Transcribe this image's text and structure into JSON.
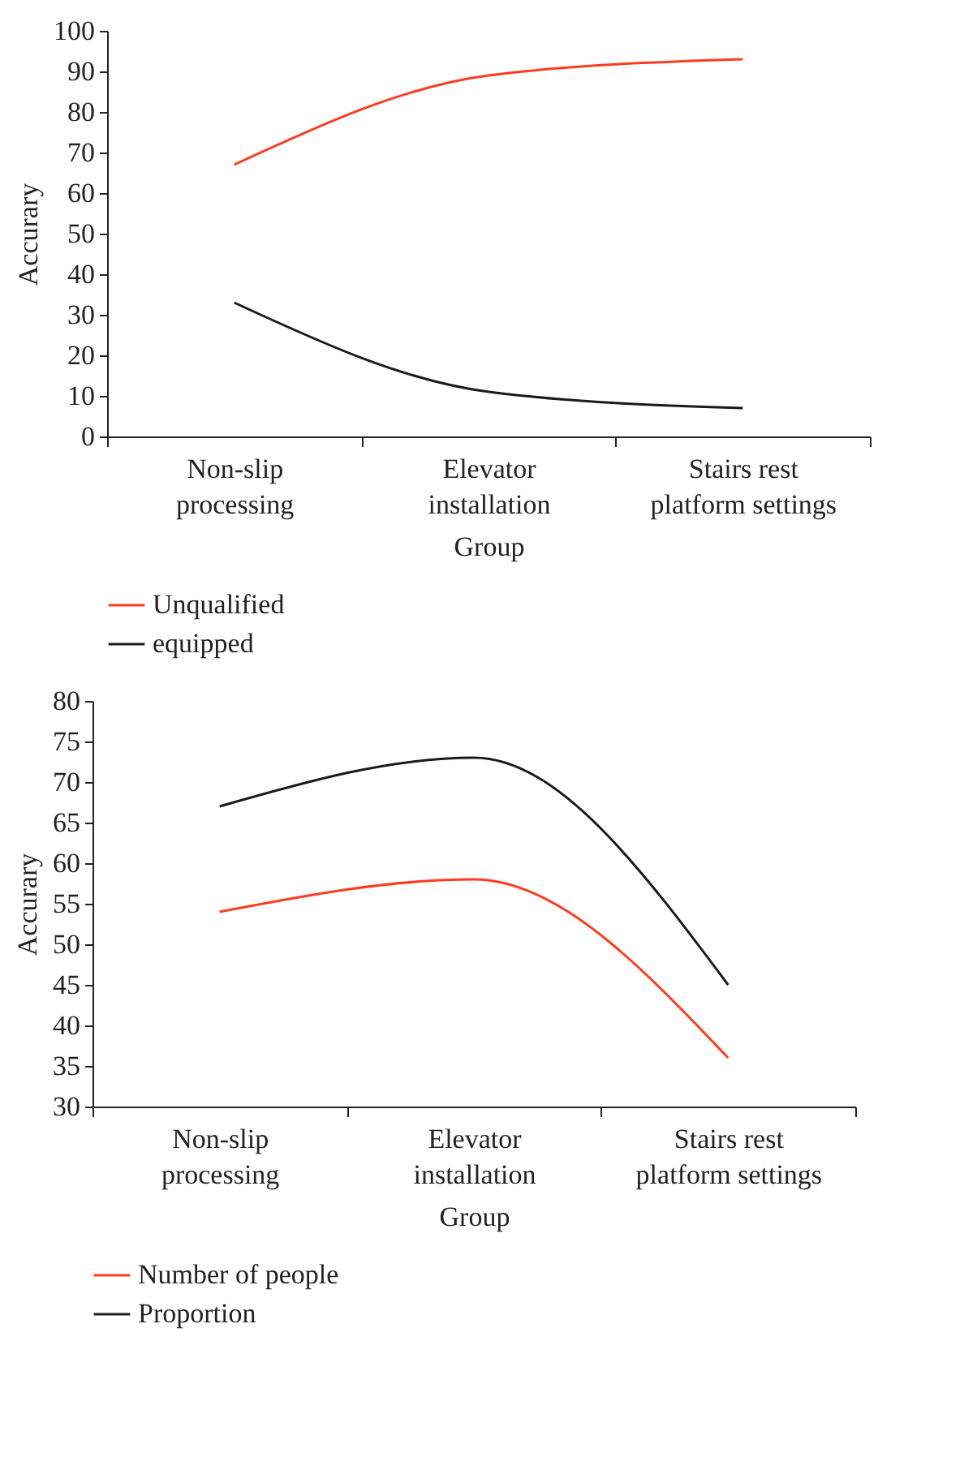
{
  "chart_data": [
    {
      "type": "line",
      "xlabel": "Group",
      "ylabel": "Accurary",
      "categories": [
        "Non-slip processing",
        "Elevator installation",
        "Stairs rest platform settings"
      ],
      "ylim": [
        0,
        100
      ],
      "yticks": [
        0,
        10,
        20,
        30,
        40,
        50,
        60,
        70,
        80,
        90,
        100
      ],
      "legend": "bottom left",
      "grid": false,
      "series": [
        {
          "name": "Unqualified",
          "color": "#ff3b1f",
          "values": [
            67,
            89,
            93
          ]
        },
        {
          "name": "equipped",
          "color": "#1a1a1a",
          "values": [
            33,
            11,
            7
          ]
        }
      ]
    },
    {
      "type": "line",
      "xlabel": "Group",
      "ylabel": "Accurary",
      "categories": [
        "Non-slip processing",
        "Elevator installation",
        "Stairs rest platform settings"
      ],
      "ylim": [
        30,
        80
      ],
      "yticks": [
        30,
        35,
        40,
        45,
        50,
        55,
        60,
        65,
        70,
        75,
        80
      ],
      "legend": "bottom left",
      "grid": false,
      "series": [
        {
          "name": "Number of people",
          "color": "#ff3b1f",
          "values": [
            54,
            58,
            36
          ]
        },
        {
          "name": "Proportion",
          "color": "#1a1a1a",
          "values": [
            67,
            73,
            45
          ]
        }
      ]
    }
  ]
}
